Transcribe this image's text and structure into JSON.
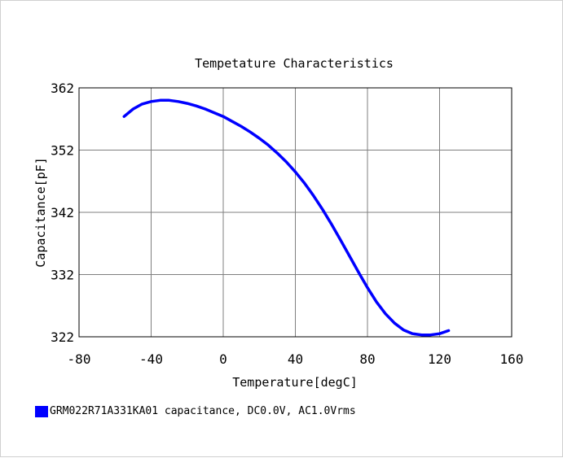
{
  "chart_data": {
    "type": "line",
    "title": "Tempetature  Characteristics",
    "xlabel": "Temperature[degC]",
    "ylabel": "Capacitance[pF]",
    "xlim": [
      -80,
      160
    ],
    "ylim": [
      322,
      362
    ],
    "xticks": [
      "-80",
      "-40",
      "0",
      "40",
      "80",
      "120",
      "160"
    ],
    "yticks": [
      "322",
      "332",
      "342",
      "352",
      "362"
    ],
    "grid": true,
    "legend_position": "bottom-left",
    "series": [
      {
        "name": "GRM022R71A331KA01 capacitance, DC0.0V, AC1.0Vrms",
        "color": "#0000ff",
        "x": [
          -55,
          -50,
          -45,
          -40,
          -35,
          -30,
          -25,
          -20,
          -15,
          -10,
          -5,
          0,
          5,
          10,
          15,
          20,
          25,
          30,
          35,
          40,
          45,
          50,
          55,
          60,
          65,
          70,
          75,
          80,
          85,
          90,
          95,
          100,
          105,
          110,
          115,
          120,
          125
        ],
        "y": [
          357.4,
          358.6,
          359.4,
          359.8,
          360.0,
          360.0,
          359.8,
          359.5,
          359.1,
          358.6,
          358.0,
          357.4,
          356.6,
          355.8,
          354.9,
          353.9,
          352.8,
          351.5,
          350.1,
          348.5,
          346.7,
          344.7,
          342.5,
          340.1,
          337.6,
          335.0,
          332.4,
          329.9,
          327.6,
          325.7,
          324.2,
          323.1,
          322.5,
          322.3,
          322.3,
          322.5,
          323.0
        ]
      }
    ]
  }
}
